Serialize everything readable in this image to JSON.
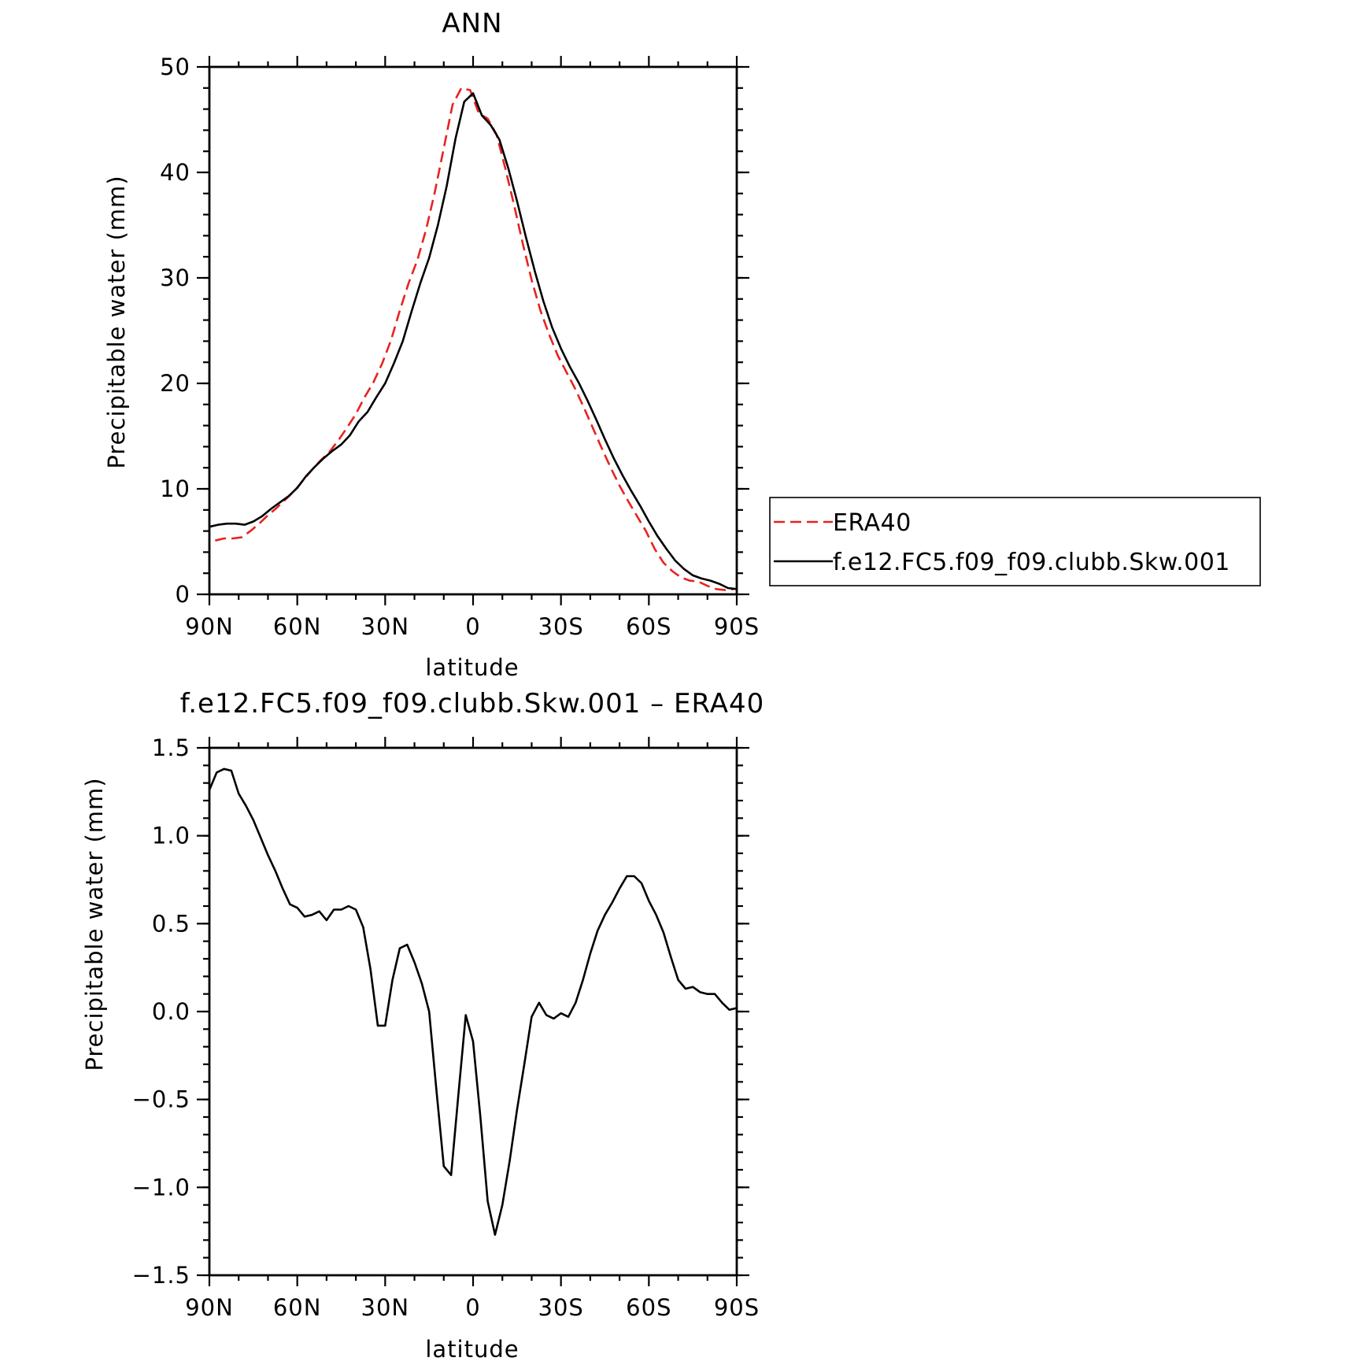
{
  "chart_data": [
    {
      "type": "line",
      "title": "ANN",
      "xlabel": "latitude",
      "ylabel": "Precipitable water (mm)",
      "xlim": [
        90,
        -90
      ],
      "ylim": [
        0,
        50
      ],
      "xticks": [
        90,
        60,
        30,
        0,
        -30,
        -60,
        -90
      ],
      "xtick_labels": [
        "90N",
        "60N",
        "30N",
        "0",
        "30S",
        "60S",
        "90S"
      ],
      "yticks": [
        0,
        10,
        20,
        30,
        40,
        50
      ],
      "ytick_labels": [
        "0",
        "10",
        "20",
        "30",
        "40",
        "50"
      ],
      "legend_position": "right",
      "series": [
        {
          "name": "ERA40",
          "color": "#e8231f",
          "style": "dashed",
          "x": [
            88,
            85,
            82,
            79,
            76,
            73,
            70,
            67,
            64,
            61,
            58,
            55,
            52,
            49,
            46,
            43,
            40,
            37,
            34,
            31,
            28,
            25,
            22,
            19,
            16,
            13,
            10,
            7,
            4,
            1,
            -2,
            -5,
            -8,
            -11,
            -14,
            -17,
            -20,
            -23,
            -26,
            -29,
            -32,
            -35,
            -38,
            -41,
            -44,
            -47,
            -50,
            -53,
            -56,
            -59,
            -62,
            -65,
            -68,
            -71,
            -74,
            -77,
            -80,
            -83,
            -86,
            -89
          ],
          "y": [
            5.1,
            5.3,
            5.3,
            5.4,
            6.0,
            6.7,
            7.5,
            8.2,
            9.0,
            9.8,
            10.8,
            11.8,
            12.7,
            13.5,
            14.6,
            15.8,
            17.1,
            18.7,
            20.1,
            21.9,
            24.1,
            26.9,
            29.5,
            31.7,
            34.6,
            38.2,
            42.3,
            46.4,
            48.0,
            47.8,
            45.6,
            45.1,
            43.6,
            40.4,
            36.9,
            33.2,
            29.8,
            26.9,
            24.6,
            22.6,
            21.0,
            19.4,
            17.6,
            15.7,
            13.8,
            12.0,
            10.3,
            8.8,
            7.4,
            6.0,
            4.3,
            3.0,
            2.2,
            1.6,
            1.3,
            1.2,
            0.8,
            0.5,
            0.4,
            0.5
          ]
        },
        {
          "name": "f.e12.FC5.f09_f09.clubb.Skw.001",
          "color": "#000000",
          "style": "solid",
          "x": [
            90,
            87,
            84,
            81,
            78,
            75,
            72,
            69,
            66,
            63,
            60,
            57,
            54,
            51,
            48,
            45,
            42,
            39,
            36,
            33,
            30,
            27,
            24,
            21,
            18,
            15,
            12,
            9,
            6,
            3,
            0,
            -3,
            -6,
            -9,
            -12,
            -15,
            -18,
            -21,
            -24,
            -27,
            -30,
            -33,
            -36,
            -39,
            -42,
            -45,
            -48,
            -51,
            -54,
            -57,
            -60,
            -63,
            -66,
            -69,
            -72,
            -75,
            -78,
            -81,
            -84,
            -87,
            -90
          ],
          "y": [
            6.4,
            6.6,
            6.7,
            6.7,
            6.6,
            6.9,
            7.4,
            8.1,
            8.7,
            9.3,
            10.1,
            11.2,
            12.1,
            12.9,
            13.6,
            14.2,
            15.1,
            16.4,
            17.3,
            18.7,
            20.0,
            21.9,
            24.0,
            26.8,
            29.5,
            31.9,
            35.0,
            38.7,
            43.2,
            46.7,
            47.5,
            45.4,
            44.5,
            43.1,
            40.4,
            37.3,
            33.9,
            30.7,
            27.8,
            25.3,
            23.3,
            21.6,
            20.1,
            18.4,
            16.6,
            14.7,
            12.9,
            11.3,
            9.8,
            8.4,
            6.9,
            5.5,
            4.3,
            3.2,
            2.4,
            1.8,
            1.5,
            1.3,
            1.0,
            0.6,
            0.5
          ]
        }
      ]
    },
    {
      "type": "line",
      "title": "f.e12.FC5.f09_f09.clubb.Skw.001 – ERA40",
      "xlabel": "latitude",
      "ylabel": "Precipitable water (mm)",
      "xlim": [
        90,
        -90
      ],
      "ylim": [
        -1.5,
        1.5
      ],
      "xticks": [
        90,
        60,
        30,
        0,
        -30,
        -60,
        -90
      ],
      "xtick_labels": [
        "90N",
        "60N",
        "30N",
        "0",
        "30S",
        "60S",
        "90S"
      ],
      "yticks": [
        1.5,
        1.0,
        0.5,
        0.0,
        -0.5,
        -1.0,
        -1.5
      ],
      "ytick_labels": [
        "1.5",
        "1.0",
        "0.5",
        "0.0",
        "−0.5",
        "−1.0",
        "−1.5"
      ],
      "series": [
        {
          "color": "#000000",
          "style": "solid",
          "x": [
            90,
            87.5,
            85,
            82.5,
            80,
            77.5,
            75,
            72.5,
            70,
            67.5,
            65,
            62.5,
            60,
            57.5,
            55,
            52.5,
            50,
            47.5,
            45,
            42.5,
            40,
            37.5,
            35,
            32.5,
            30,
            27.5,
            25,
            22.5,
            20,
            17.5,
            15,
            12.5,
            10,
            7.5,
            5,
            2.5,
            0,
            -2.5,
            -5,
            -7.5,
            -10,
            -12.5,
            -15,
            -17.5,
            -20,
            -22.5,
            -25,
            -27.5,
            -30,
            -32.5,
            -35,
            -37.5,
            -40,
            -42.5,
            -45,
            -47.5,
            -50,
            -52.5,
            -55,
            -57.5,
            -60,
            -62.5,
            -65,
            -67.5,
            -70,
            -72.5,
            -75,
            -77.5,
            -80,
            -82.5,
            -85,
            -87.5,
            -90
          ],
          "y": [
            1.26,
            1.36,
            1.38,
            1.37,
            1.24,
            1.17,
            1.09,
            0.99,
            0.89,
            0.8,
            0.7,
            0.61,
            0.59,
            0.54,
            0.55,
            0.57,
            0.52,
            0.58,
            0.58,
            0.6,
            0.58,
            0.48,
            0.24,
            -0.08,
            -0.08,
            0.18,
            0.36,
            0.38,
            0.28,
            0.16,
            0.0,
            -0.45,
            -0.88,
            -0.93,
            -0.47,
            -0.02,
            -0.17,
            -0.6,
            -1.08,
            -1.27,
            -1.1,
            -0.85,
            -0.56,
            -0.3,
            -0.03,
            0.05,
            -0.02,
            -0.04,
            -0.01,
            -0.03,
            0.05,
            0.18,
            0.33,
            0.46,
            0.55,
            0.62,
            0.7,
            0.77,
            0.77,
            0.73,
            0.63,
            0.55,
            0.45,
            0.31,
            0.18,
            0.13,
            0.14,
            0.11,
            0.1,
            0.1,
            0.05,
            0.01,
            0.02
          ]
        }
      ]
    }
  ]
}
